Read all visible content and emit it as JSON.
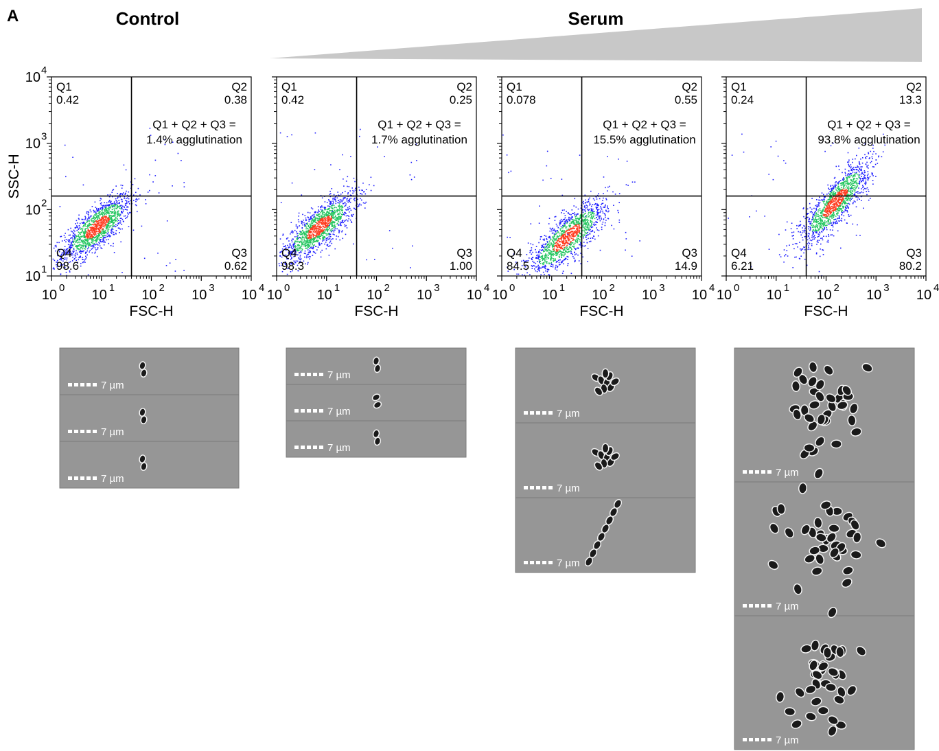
{
  "figure": {
    "panel_label": "A",
    "control_title": "Control",
    "serum_title": "Serum",
    "scale_label": "7 µm"
  },
  "chart_data": [
    {
      "type": "scatter",
      "group": "Control",
      "xlabel": "FSC-H",
      "ylabel": "SSC-H",
      "xscale": "log",
      "yscale": "log",
      "xlim": [
        1,
        10000
      ],
      "ylim": [
        10,
        10000
      ],
      "x_ticks": [
        "0",
        "1",
        "2",
        "3",
        "4"
      ],
      "y_ticks": [
        "1",
        "2",
        "3",
        "4"
      ],
      "gate": {
        "x": 40,
        "y": 160
      },
      "quadrants": {
        "Q1": "0.42",
        "Q2": "0.38",
        "Q3": "0.62",
        "Q4": "98.6"
      },
      "annotation": [
        "Q1 + Q2 + Q3 =",
        "1.4% agglutination"
      ],
      "population": {
        "center_x": 8,
        "center_y": 55,
        "spread_x": 0.35,
        "spread_y": 0.16,
        "slope": 0.55
      }
    },
    {
      "type": "scatter",
      "group": "Serum",
      "xlabel": "FSC-H",
      "ylabel": "",
      "xscale": "log",
      "yscale": "log",
      "xlim": [
        1,
        10000
      ],
      "ylim": [
        10,
        10000
      ],
      "x_ticks": [
        "0",
        "1",
        "2",
        "3",
        "4"
      ],
      "y_ticks": [],
      "gate": {
        "x": 40,
        "y": 160
      },
      "quadrants": {
        "Q1": "0.42",
        "Q2": "0.25",
        "Q3": "1.00",
        "Q4": "98.3"
      },
      "annotation": [
        "Q1 + Q2 + Q3 =",
        "1.7% agglutination"
      ],
      "population": {
        "center_x": 7,
        "center_y": 55,
        "spread_x": 0.36,
        "spread_y": 0.16,
        "slope": 0.55
      }
    },
    {
      "type": "scatter",
      "group": "Serum",
      "xlabel": "FSC-H",
      "ylabel": "",
      "xscale": "log",
      "yscale": "log",
      "xlim": [
        1,
        10000
      ],
      "ylim": [
        10,
        10000
      ],
      "x_ticks": [
        "0",
        "1",
        "2",
        "3",
        "4"
      ],
      "y_ticks": [],
      "gate": {
        "x": 40,
        "y": 160
      },
      "quadrants": {
        "Q1": "0.078",
        "Q2": "0.55",
        "Q3": "14.9",
        "Q4": "84.5"
      },
      "annotation": [
        "Q1 + Q2 + Q3 =",
        "15.5% agglutination"
      ],
      "population": {
        "center_x": 20,
        "center_y": 38,
        "spread_x": 0.4,
        "spread_y": 0.17,
        "slope": 0.6
      }
    },
    {
      "type": "scatter",
      "group": "Serum",
      "xlabel": "FSC-H",
      "ylabel": "",
      "xscale": "log",
      "yscale": "log",
      "xlim": [
        1,
        10000
      ],
      "ylim": [
        10,
        10000
      ],
      "x_ticks": [
        "0",
        "1",
        "2",
        "3",
        "4"
      ],
      "y_ticks": [],
      "gate": {
        "x": 40,
        "y": 160
      },
      "quadrants": {
        "Q1": "0.24",
        "Q2": "13.3",
        "Q3": "80.2",
        "Q4": "6.21"
      },
      "annotation": [
        "Q1 + Q2 + Q3 =",
        "93.8% agglutination"
      ],
      "population": {
        "center_x": 150,
        "center_y": 130,
        "spread_x": 0.35,
        "spread_y": 0.17,
        "slope": 0.75
      }
    }
  ],
  "image_panels": [
    {
      "tiles": 3,
      "objects": [
        "diplococcus",
        "diplococcus",
        "diplococcus"
      ]
    },
    {
      "tiles": 3,
      "objects": [
        "diplococcus",
        "diplococcus",
        "diplococcus"
      ]
    },
    {
      "tiles": 3,
      "objects": [
        "small cluster",
        "small cluster",
        "chain"
      ]
    },
    {
      "tiles": 3,
      "objects": [
        "large aggregate",
        "large aggregate",
        "large aggregate"
      ]
    }
  ],
  "colors": {
    "wedge": "#c8c8c8",
    "tile_background": "#969696",
    "dot_low": "#1f1fff",
    "dot_mid": "#22c55e",
    "dot_high": "#ff3b1f"
  }
}
